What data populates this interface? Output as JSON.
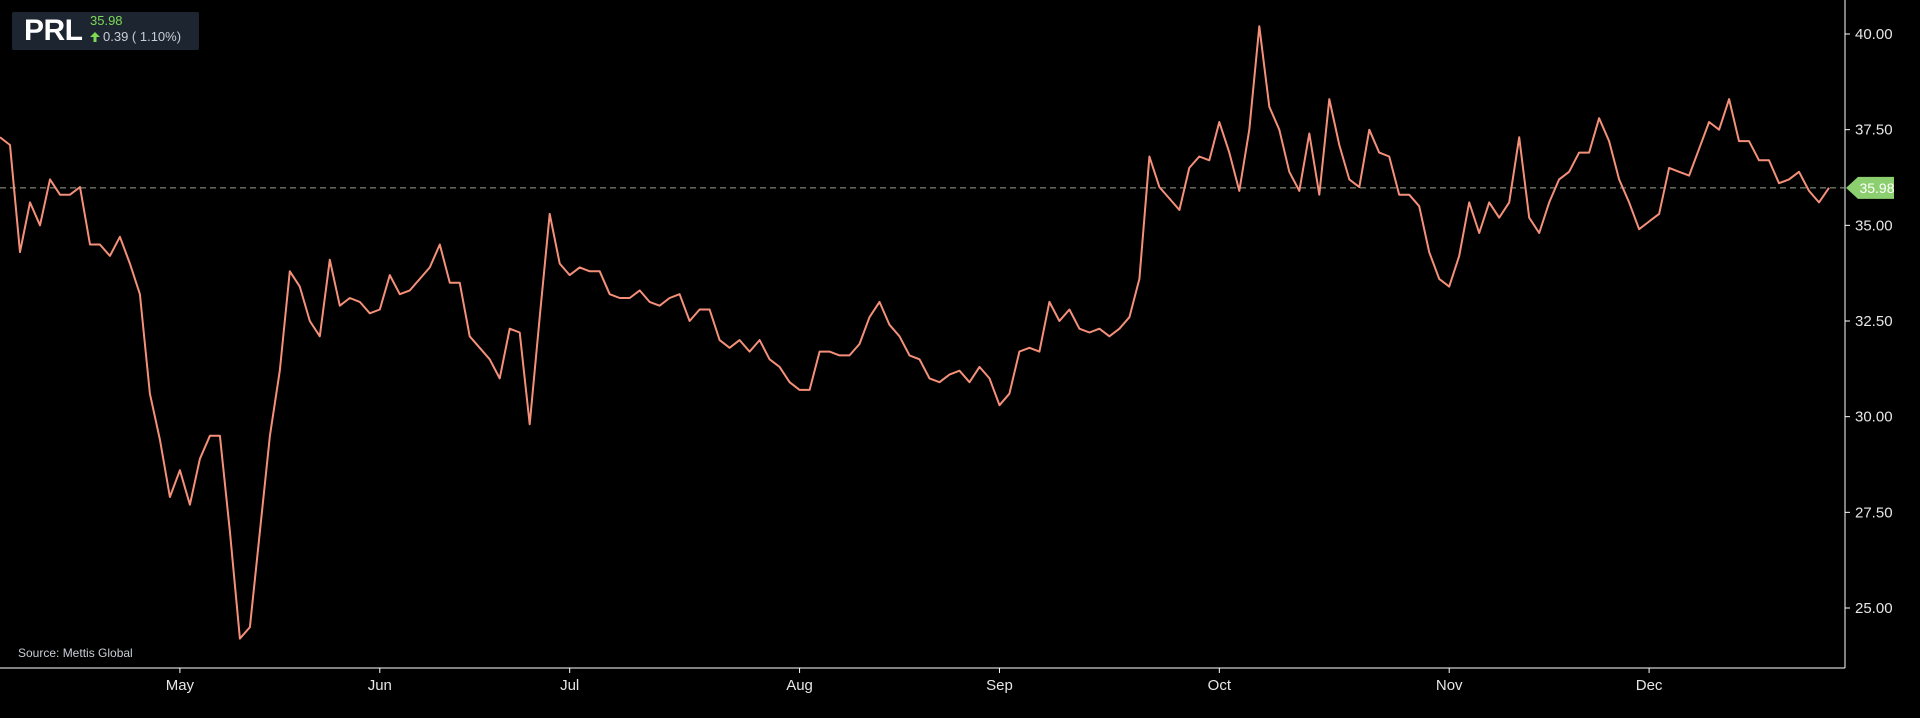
{
  "ticker": {
    "symbol": "PRL",
    "price": "35.98",
    "change": "0.39 ( 1.10%)",
    "direction_icon": "up-arrow-icon"
  },
  "source": "Source: Mettis Global",
  "colors": {
    "background": "#000000",
    "line": "#f4907a",
    "price_up": "#7ed957",
    "last_price_tag": "#8ccf6e",
    "ticker_box": "#1c2530",
    "axis_text": "#e6e6e6",
    "dashed_line": "#9aa08e"
  },
  "chart_data": {
    "type": "line",
    "title": "",
    "xlabel": "",
    "ylabel": "",
    "ylim": [
      23.6,
      40.7
    ],
    "y_ticks": [
      "25.00",
      "27.50",
      "30.00",
      "32.50",
      "35.00",
      "37.50",
      "40.00"
    ],
    "x_tick_labels": [
      {
        "label": "May",
        "index": 18
      },
      {
        "label": "Jun",
        "index": 38
      },
      {
        "label": "Jul",
        "index": 57
      },
      {
        "label": "Aug",
        "index": 80
      },
      {
        "label": "Sep",
        "index": 100
      },
      {
        "label": "Oct",
        "index": 122
      },
      {
        "label": "Nov",
        "index": 145
      },
      {
        "label": "Dec",
        "index": 165
      }
    ],
    "last_price": {
      "value": 35.98,
      "label": "35.98"
    },
    "grid": false,
    "series": [
      {
        "values": [
          37.3,
          37.1,
          34.3,
          35.6,
          35.0,
          36.2,
          35.8,
          35.8,
          36.0,
          34.5,
          34.5,
          34.2,
          34.7,
          34.0,
          33.2,
          30.6,
          29.4,
          27.9,
          28.6,
          27.7,
          28.9,
          29.5,
          29.5,
          27.0,
          24.2,
          24.5,
          27.0,
          29.5,
          31.2,
          33.8,
          33.4,
          32.5,
          32.1,
          34.1,
          32.9,
          33.1,
          33.0,
          32.7,
          32.8,
          33.7,
          33.2,
          33.3,
          33.6,
          33.9,
          34.5,
          33.5,
          33.5,
          32.1,
          31.8,
          31.5,
          31.0,
          32.3,
          32.2,
          29.8,
          32.6,
          35.3,
          34.0,
          33.7,
          33.9,
          33.8,
          33.8,
          33.2,
          33.1,
          33.1,
          33.3,
          33.0,
          32.9,
          33.1,
          33.2,
          32.5,
          32.8,
          32.8,
          32.0,
          31.8,
          32.0,
          31.7,
          32.0,
          31.5,
          31.3,
          30.9,
          30.7,
          30.7,
          31.7,
          31.7,
          31.6,
          31.6,
          31.9,
          32.6,
          33.0,
          32.4,
          32.1,
          31.6,
          31.5,
          31.0,
          30.9,
          31.1,
          31.2,
          30.9,
          31.3,
          31.0,
          30.3,
          30.6,
          31.7,
          31.8,
          31.7,
          33.0,
          32.5,
          32.8,
          32.3,
          32.2,
          32.3,
          32.1,
          32.3,
          32.6,
          33.6,
          36.8,
          36.0,
          35.7,
          35.4,
          36.5,
          36.8,
          36.7,
          37.7,
          36.9,
          35.9,
          37.5,
          40.2,
          38.1,
          37.5,
          36.4,
          35.9,
          37.4,
          35.8,
          38.3,
          37.1,
          36.2,
          36.0,
          37.5,
          36.9,
          36.8,
          35.8,
          35.8,
          35.5,
          34.3,
          33.6,
          33.4,
          34.2,
          35.6,
          34.8,
          35.6,
          35.2,
          35.6,
          37.3,
          35.2,
          34.8,
          35.6,
          36.2,
          36.4,
          36.9,
          36.9,
          37.8,
          37.2,
          36.2,
          35.6,
          34.9,
          35.1,
          35.3,
          36.5,
          36.4,
          36.3,
          37.0,
          37.7,
          37.5,
          38.3,
          37.2,
          37.2,
          36.7,
          36.7,
          36.1,
          36.2,
          36.4,
          35.9,
          35.6,
          35.98
        ]
      }
    ]
  }
}
